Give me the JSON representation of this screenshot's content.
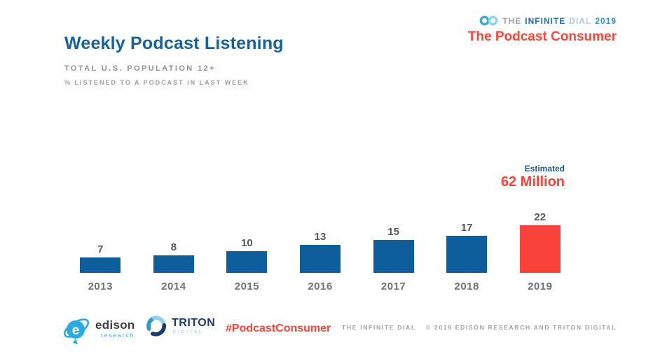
{
  "header": {
    "title": "Weekly Podcast Listening",
    "subtitle": "TOTAL U.S. POPULATION 12+",
    "note": "% LISTENED TO A PODCAST IN LAST WEEK"
  },
  "brand": {
    "logo_words": {
      "the": "THE",
      "infinite": "INFINITE",
      "dial": "DIAL",
      "year": "2019"
    },
    "report_title": "The Podcast Consumer"
  },
  "annotation": {
    "label": "Estimated",
    "value": "62 Million"
  },
  "chart_data": {
    "type": "bar",
    "title": "Weekly Podcast Listening",
    "subtitle": "Total U.S. Population 12+ — % listened to a podcast in last week",
    "categories": [
      "2013",
      "2014",
      "2015",
      "2016",
      "2017",
      "2018",
      "2019"
    ],
    "values": [
      7,
      8,
      10,
      13,
      15,
      17,
      22
    ],
    "unit": "percent",
    "ylim": [
      0,
      25
    ],
    "grid": false,
    "legend": "none",
    "bar_color": "#0E5E9C",
    "highlight_index": 6,
    "highlight_color": "#F9423A",
    "annotation": {
      "label": "Estimated",
      "value": "62 Million",
      "applies_to": "2019"
    }
  },
  "footer": {
    "edison": {
      "name": "edison",
      "sub": "research"
    },
    "triton": {
      "name": "TRITON",
      "sub": "DIGITAL"
    },
    "hashtag": "#PodcastConsumer",
    "report_name": "THE INFINITE DIAL",
    "copyright": "© 2019 EDISON RESEARCH AND TRITON DIGITAL"
  },
  "colors": {
    "title_blue": "#15629E",
    "bar_blue": "#0E5E9C",
    "accent_red": "#F6473B",
    "highlight_red": "#F9423A",
    "muted_gray": "#8B9196",
    "label_gray": "#6D7277",
    "logo_light_blue": "#29ABE2",
    "triton_navy": "#1D3C6E"
  }
}
